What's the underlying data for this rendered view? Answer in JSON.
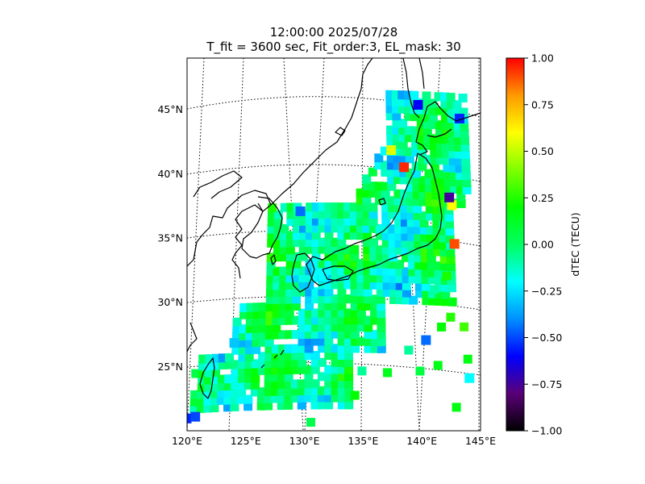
{
  "title": {
    "line1": "12:00:00 2025/07/28",
    "line2": "T_fit = 3600 sec, Fit_order:3, EL_mask: 30"
  },
  "map": {
    "projection": "conic",
    "lon_range": [
      120,
      145
    ],
    "lat_range": [
      20,
      49
    ],
    "lon_ticks": [
      {
        "value": 120,
        "label": "120°E"
      },
      {
        "value": 125,
        "label": "125°E"
      },
      {
        "value": 130,
        "label": "130°E"
      },
      {
        "value": 135,
        "label": "135°E"
      },
      {
        "value": 140,
        "label": "140°E"
      },
      {
        "value": 145,
        "label": "145°E"
      }
    ],
    "lat_ticks": [
      {
        "value": 45,
        "label": "45°N"
      },
      {
        "value": 40,
        "label": "40°N"
      },
      {
        "value": 35,
        "label": "35°N"
      },
      {
        "value": 30,
        "label": "30°N"
      },
      {
        "value": 25,
        "label": "25°N"
      }
    ],
    "graticule_style": "dotted",
    "coastline_color": "#000000"
  },
  "colorbar": {
    "label": "dTEC (TECU)",
    "min": -1.0,
    "max": 1.0,
    "ticks": [
      "1.00",
      "0.75",
      "0.50",
      "0.25",
      "0.00",
      "−0.25",
      "−0.50",
      "−0.75",
      "−1.00"
    ],
    "colormap": "nipy_spectral-like",
    "stops": [
      "#000000",
      "#5a0078",
      "#0000ff",
      "#0090ff",
      "#00ffff",
      "#00ff60",
      "#00ff00",
      "#80ff00",
      "#ffff00",
      "#ff9900",
      "#ff0000"
    ]
  },
  "chart_data": {
    "type": "heatmap",
    "title": "12:00:00 2025/07/28 — T_fit = 3600 sec, Fit_order:3, EL_mask: 30",
    "value_label": "dTEC (TECU)",
    "vmin": -1.0,
    "vmax": 1.0,
    "notable_cells": [
      {
        "lon": 138.7,
        "lat": 40.6,
        "value": 0.95
      },
      {
        "lon": 142.9,
        "lat": 34.8,
        "value": 0.9
      },
      {
        "lon": 137.6,
        "lat": 41.9,
        "value": 0.55
      },
      {
        "lon": 142.8,
        "lat": 37.8,
        "value": 0.6
      },
      {
        "lon": 140.1,
        "lat": 45.5,
        "value": -0.6
      },
      {
        "lon": 142.6,
        "lat": 38.4,
        "value": -0.75
      },
      {
        "lon": 143.8,
        "lat": 44.6,
        "value": -0.55
      },
      {
        "lon": 120.5,
        "lat": 21.3,
        "value": -0.55
      },
      {
        "lon": 121.2,
        "lat": 21.4,
        "value": -0.5
      },
      {
        "lon": 129.6,
        "lat": 37.1,
        "value": -0.45
      },
      {
        "lon": 140.2,
        "lat": 27.2,
        "value": -0.45
      },
      {
        "lon": 143.7,
        "lat": 24.4,
        "value": -0.2
      },
      {
        "lon": 131.6,
        "lat": 32.0,
        "value": -0.2
      },
      {
        "lon": 124.2,
        "lat": 27.0,
        "value": -0.3
      }
    ]
  }
}
